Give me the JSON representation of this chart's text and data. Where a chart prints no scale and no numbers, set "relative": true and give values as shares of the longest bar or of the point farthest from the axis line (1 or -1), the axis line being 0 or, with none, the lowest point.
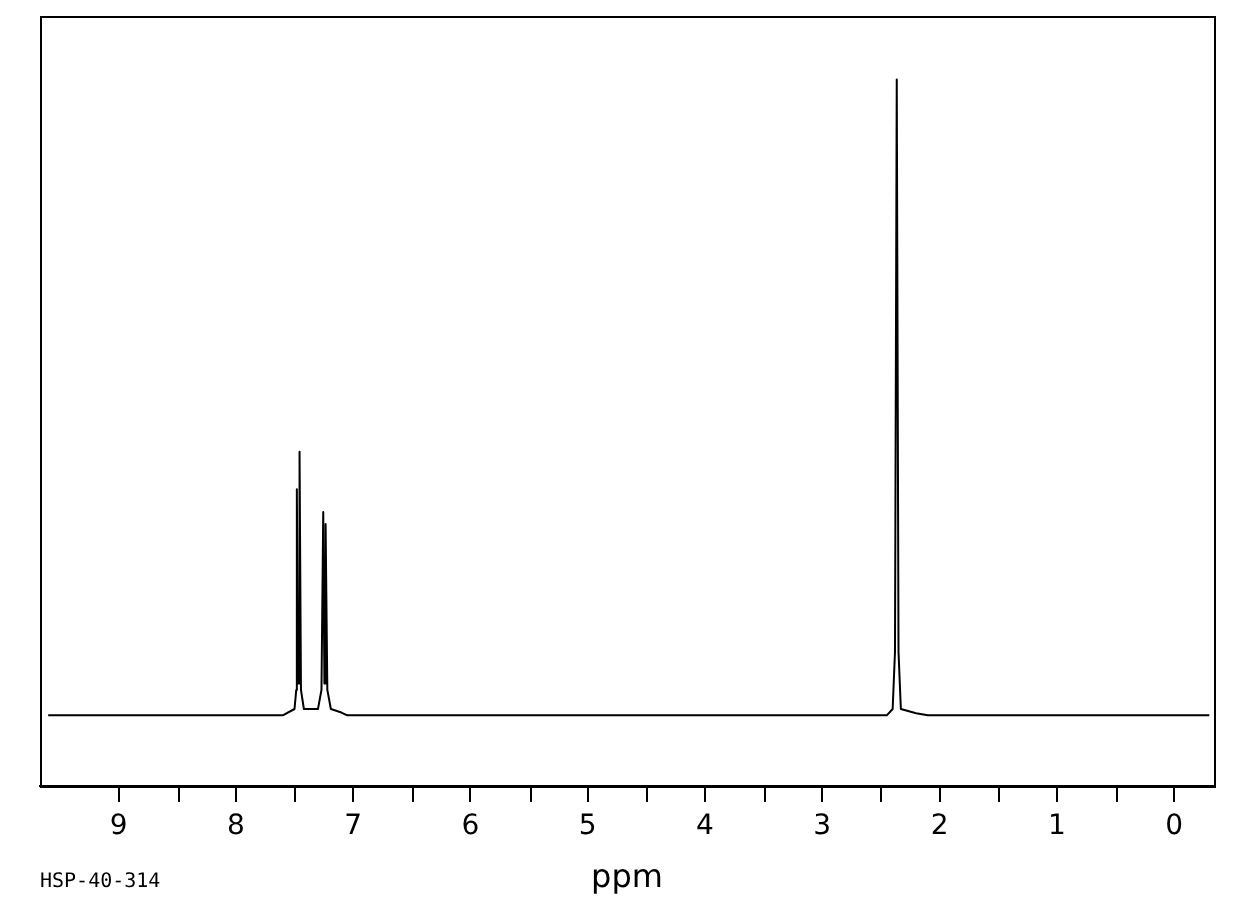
{
  "chart_data": {
    "type": "line",
    "relative": true,
    "xlabel": "ppm",
    "annotations": [
      "HSP-40-314"
    ],
    "xlim": [
      9.67,
      -0.34
    ],
    "xticks": [
      9,
      {
        "value": 8.5,
        "label": null
      },
      8,
      {
        "value": 7.5,
        "label": null
      },
      7,
      {
        "value": 6.5,
        "label": null
      },
      6,
      {
        "value": 5.5,
        "label": null
      },
      5,
      {
        "value": 4.5,
        "label": null
      },
      4,
      {
        "value": 3.5,
        "label": null
      },
      3,
      {
        "value": 2.5,
        "label": null
      },
      2,
      {
        "value": 1.5,
        "label": null
      },
      1,
      {
        "value": 0.5,
        "label": null
      },
      0
    ],
    "grid": false,
    "legend": false,
    "marker": "none",
    "line_style": "solid",
    "series": [
      {
        "color": "#000000",
        "x": [
          9.6,
          7.6,
          7.5,
          7.485,
          7.48,
          7.47,
          7.457,
          7.445,
          7.42,
          7.3,
          7.27,
          7.255,
          7.245,
          7.235,
          7.22,
          7.19,
          7.1,
          7.05,
          2.45,
          2.4,
          2.38,
          2.365,
          2.35,
          2.33,
          2.2,
          2.1,
          -0.3
        ],
        "values": [
          0.1,
          0.1,
          0.109,
          0.136,
          0.42,
          0.145,
          0.473,
          0.136,
          0.109,
          0.109,
          0.136,
          0.388,
          0.145,
          0.371,
          0.136,
          0.109,
          0.104,
          0.1,
          0.1,
          0.109,
          0.19,
          1,
          0.19,
          0.109,
          0.103,
          0.1,
          0.1
        ]
      }
    ]
  }
}
